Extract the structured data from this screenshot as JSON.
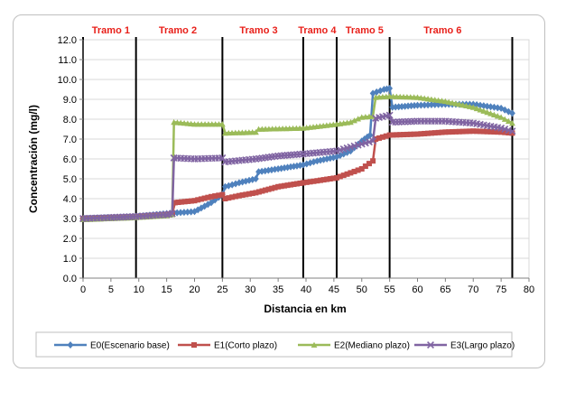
{
  "chart_data": {
    "type": "line",
    "title": "",
    "xlabel": "Distancia en km",
    "ylabel": "Concentración (mg/l)",
    "xlim": [
      0,
      80
    ],
    "ylim": [
      0,
      12
    ],
    "x_ticks": [
      "0",
      "5",
      "10",
      "15",
      "20",
      "25",
      "30",
      "35",
      "40",
      "45",
      "50",
      "55",
      "60",
      "65",
      "70",
      "75",
      "80"
    ],
    "y_ticks": [
      "0.0",
      "1.0",
      "2.0",
      "3.0",
      "4.0",
      "5.0",
      "6.0",
      "7.0",
      "8.0",
      "9.0",
      "10.0",
      "11.0",
      "12.0"
    ],
    "grid": "horizontal",
    "legend_position": "bottom",
    "segments": [
      {
        "label": "Tramo 1",
        "x": 5
      },
      {
        "label": "Tramo 2",
        "x": 17
      },
      {
        "label": "Tramo 3",
        "x": 31.5
      },
      {
        "label": "Tramo 4",
        "x": 42
      },
      {
        "label": "Tramo 5",
        "x": 50.5
      },
      {
        "label": "Tramo 6",
        "x": 64.5
      }
    ],
    "boundaries": [
      0,
      9.5,
      25,
      39.5,
      45.5,
      55,
      77
    ],
    "series": [
      {
        "name": "E0(Escenario base)",
        "color": "#4f81bd",
        "marker": "diamond",
        "points": [
          [
            0,
            3.0
          ],
          [
            5,
            3.05
          ],
          [
            9.5,
            3.1
          ],
          [
            15,
            3.25
          ],
          [
            20,
            3.35
          ],
          [
            23,
            3.8
          ],
          [
            25,
            4.2
          ],
          [
            25.5,
            4.6
          ],
          [
            28,
            4.8
          ],
          [
            31,
            5.0
          ],
          [
            31.5,
            5.35
          ],
          [
            35,
            5.5
          ],
          [
            39.5,
            5.7
          ],
          [
            42,
            5.9
          ],
          [
            45.5,
            6.1
          ],
          [
            48,
            6.4
          ],
          [
            50,
            6.9
          ],
          [
            51,
            7.1
          ],
          [
            51.5,
            7.2
          ],
          [
            52,
            9.3
          ],
          [
            54,
            9.5
          ],
          [
            55,
            9.55
          ],
          [
            55.5,
            8.6
          ],
          [
            60,
            8.7
          ],
          [
            65,
            8.75
          ],
          [
            70,
            8.75
          ],
          [
            75,
            8.55
          ],
          [
            77,
            8.3
          ]
        ]
      },
      {
        "name": "E1(Corto plazo)",
        "color": "#c0504d",
        "marker": "square",
        "points": [
          [
            0,
            3.0
          ],
          [
            5,
            3.05
          ],
          [
            9.5,
            3.1
          ],
          [
            15,
            3.2
          ],
          [
            16,
            3.25
          ],
          [
            16.5,
            3.8
          ],
          [
            20,
            3.9
          ],
          [
            23,
            4.1
          ],
          [
            25,
            4.2
          ],
          [
            25.5,
            4.0
          ],
          [
            28,
            4.15
          ],
          [
            31,
            4.3
          ],
          [
            35,
            4.6
          ],
          [
            39.5,
            4.8
          ],
          [
            42,
            4.9
          ],
          [
            45.5,
            5.05
          ],
          [
            48,
            5.3
          ],
          [
            50,
            5.5
          ],
          [
            52,
            5.9
          ],
          [
            52.5,
            7.0
          ],
          [
            55,
            7.2
          ],
          [
            60,
            7.25
          ],
          [
            65,
            7.35
          ],
          [
            70,
            7.4
          ],
          [
            75,
            7.35
          ],
          [
            77,
            7.3
          ]
        ]
      },
      {
        "name": "E2(Mediano plazo)",
        "color": "#9bbb59",
        "marker": "triangle",
        "points": [
          [
            0,
            2.95
          ],
          [
            5,
            3.0
          ],
          [
            9.5,
            3.05
          ],
          [
            15,
            3.15
          ],
          [
            16,
            3.2
          ],
          [
            16.3,
            7.85
          ],
          [
            20,
            7.75
          ],
          [
            25,
            7.75
          ],
          [
            25.5,
            7.3
          ],
          [
            31,
            7.35
          ],
          [
            31.5,
            7.5
          ],
          [
            39.5,
            7.55
          ],
          [
            45.5,
            7.75
          ],
          [
            48,
            7.85
          ],
          [
            50,
            8.1
          ],
          [
            52,
            8.15
          ],
          [
            52.5,
            9.1
          ],
          [
            55,
            9.15
          ],
          [
            60,
            9.1
          ],
          [
            65,
            8.9
          ],
          [
            70,
            8.6
          ],
          [
            75,
            8.1
          ],
          [
            77,
            7.8
          ]
        ]
      },
      {
        "name": "E3(Largo plazo)",
        "color": "#8064a2",
        "marker": "x",
        "points": [
          [
            0,
            3.0
          ],
          [
            5,
            3.05
          ],
          [
            9.5,
            3.1
          ],
          [
            15,
            3.2
          ],
          [
            16,
            3.25
          ],
          [
            16.3,
            6.05
          ],
          [
            20,
            6.0
          ],
          [
            25,
            6.05
          ],
          [
            25.5,
            5.85
          ],
          [
            31,
            6.0
          ],
          [
            35,
            6.15
          ],
          [
            39.5,
            6.25
          ],
          [
            45.5,
            6.4
          ],
          [
            48,
            6.6
          ],
          [
            50,
            6.75
          ],
          [
            52,
            6.9
          ],
          [
            52.5,
            8.05
          ],
          [
            55,
            8.2
          ],
          [
            55.5,
            7.85
          ],
          [
            60,
            7.9
          ],
          [
            65,
            7.9
          ],
          [
            70,
            7.8
          ],
          [
            75,
            7.55
          ],
          [
            77,
            7.4
          ]
        ]
      }
    ]
  }
}
